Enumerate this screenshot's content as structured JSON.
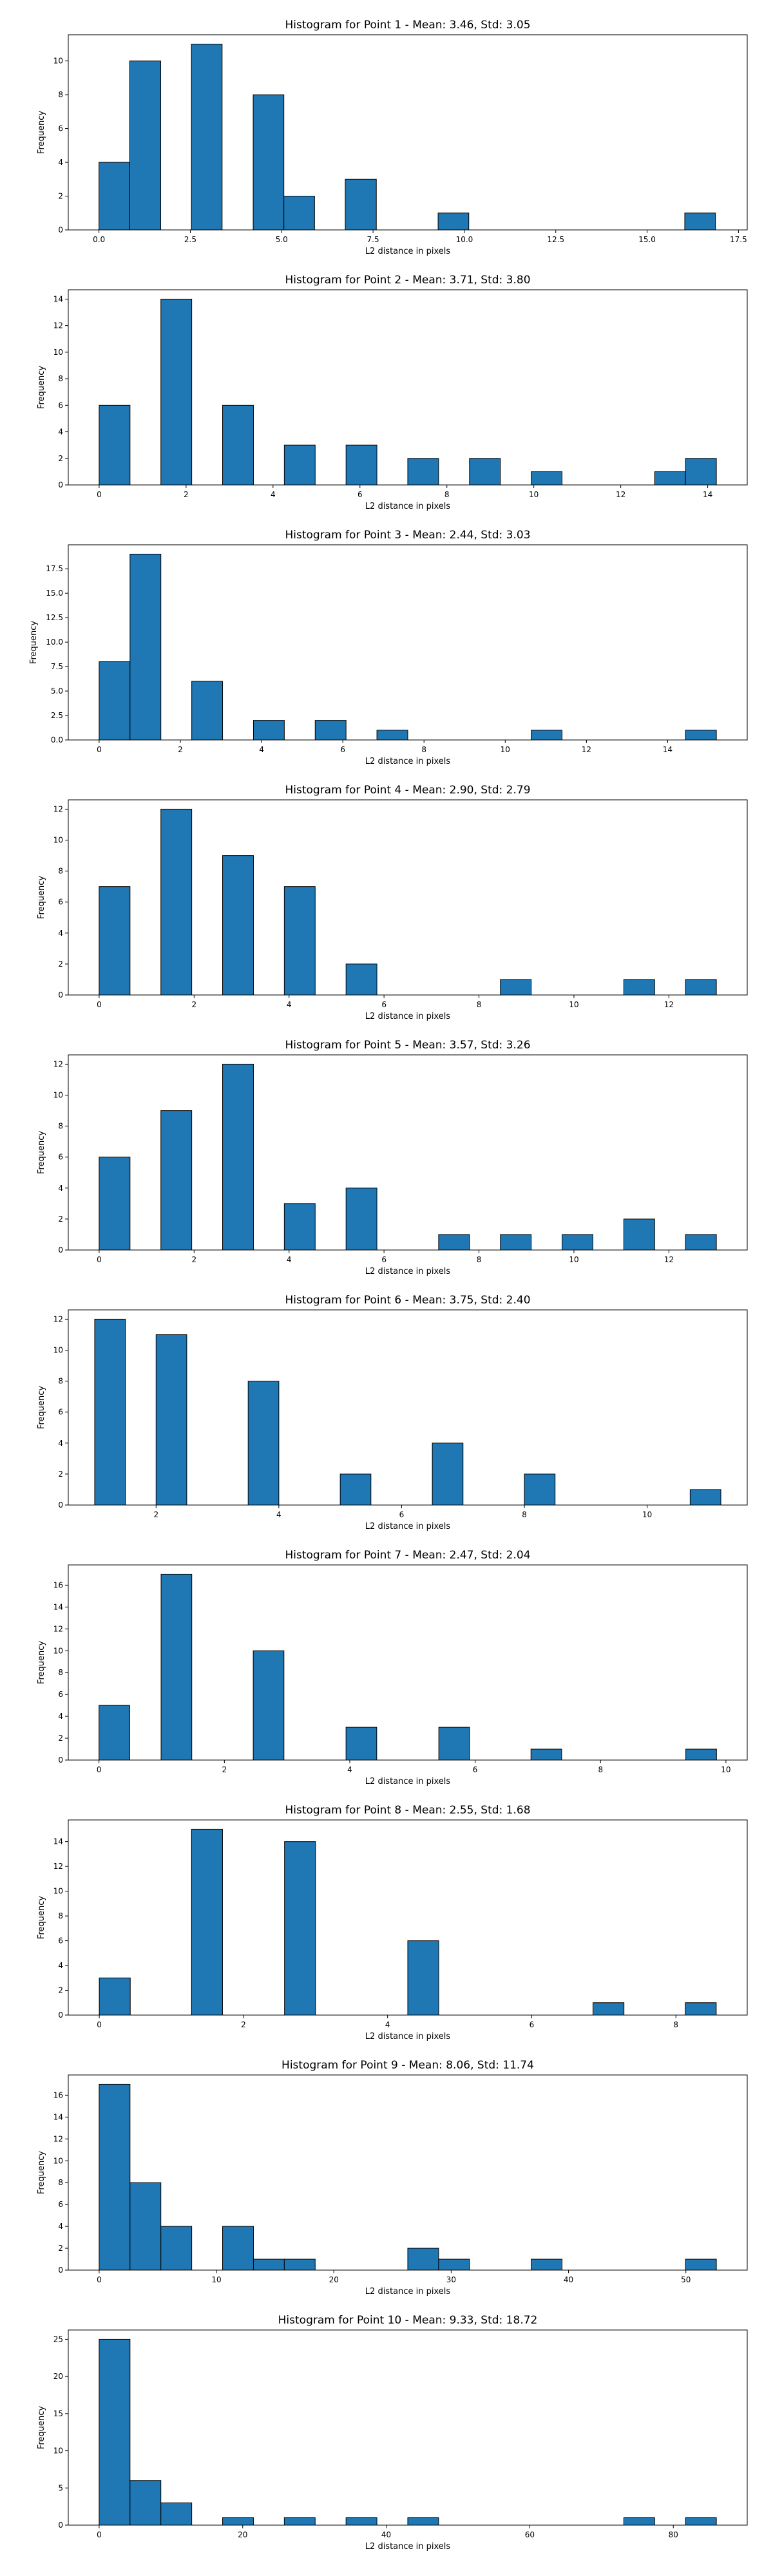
{
  "chart_data": [
    {
      "type": "bar",
      "title": "Histogram for Point 1 - Mean: 3.46, Std: 3.05",
      "xlabel": "L2 distance in pixels",
      "ylabel": "Frequency",
      "xlim": [
        -0.84,
        17.74
      ],
      "ylim": [
        0,
        11.55
      ],
      "xticks": [
        0,
        2.5,
        5,
        7.5,
        10,
        12.5,
        15,
        17.5
      ],
      "xtick_labels": [
        "0.0",
        "2.5",
        "5.0",
        "7.5",
        "10.0",
        "12.5",
        "15.0",
        "17.5"
      ],
      "yticks": [
        0,
        2,
        4,
        6,
        8,
        10
      ],
      "bins": [
        {
          "x0": 0.0,
          "x1": 0.84,
          "count": 4
        },
        {
          "x0": 0.84,
          "x1": 1.69,
          "count": 10
        },
        {
          "x0": 2.53,
          "x1": 3.37,
          "count": 11
        },
        {
          "x0": 4.22,
          "x1": 5.06,
          "count": 8
        },
        {
          "x0": 5.06,
          "x1": 5.9,
          "count": 2
        },
        {
          "x0": 6.74,
          "x1": 7.59,
          "count": 3
        },
        {
          "x0": 9.28,
          "x1": 10.12,
          "count": 1
        },
        {
          "x0": 16.03,
          "x1": 16.87,
          "count": 1
        }
      ]
    },
    {
      "type": "bar",
      "title": "Histogram for Point 2 - Mean: 3.71, Std: 3.80",
      "xlabel": "L2 distance in pixels",
      "ylabel": "Frequency",
      "xlim": [
        -0.71,
        14.91
      ],
      "ylim": [
        0,
        14.7
      ],
      "xticks": [
        0,
        2,
        4,
        6,
        8,
        10,
        12,
        14
      ],
      "xtick_labels": [
        "0",
        "2",
        "4",
        "6",
        "8",
        "10",
        "12",
        "14"
      ],
      "yticks": [
        0,
        2,
        4,
        6,
        8,
        10,
        12,
        14
      ],
      "bins": [
        {
          "x0": 0.0,
          "x1": 0.71,
          "count": 6
        },
        {
          "x0": 1.42,
          "x1": 2.13,
          "count": 14
        },
        {
          "x0": 2.84,
          "x1": 3.55,
          "count": 6
        },
        {
          "x0": 4.26,
          "x1": 4.97,
          "count": 3
        },
        {
          "x0": 5.68,
          "x1": 6.39,
          "count": 3
        },
        {
          "x0": 7.1,
          "x1": 7.81,
          "count": 2
        },
        {
          "x0": 8.52,
          "x1": 9.23,
          "count": 2
        },
        {
          "x0": 9.94,
          "x1": 10.65,
          "count": 1
        },
        {
          "x0": 12.78,
          "x1": 13.49,
          "count": 1
        },
        {
          "x0": 13.49,
          "x1": 14.2,
          "count": 2
        }
      ]
    },
    {
      "type": "bar",
      "title": "Histogram for Point 3 - Mean: 2.44, Std: 3.03",
      "xlabel": "L2 distance in pixels",
      "ylabel": "Frequency",
      "xlim": [
        -0.76,
        15.96
      ],
      "ylim": [
        0,
        19.95
      ],
      "xticks": [
        0,
        2,
        4,
        6,
        8,
        10,
        12,
        14
      ],
      "xtick_labels": [
        "0",
        "2",
        "4",
        "6",
        "8",
        "10",
        "12",
        "14"
      ],
      "yticks": [
        0,
        2.5,
        5,
        7.5,
        10,
        12.5,
        15,
        17.5
      ],
      "ytick_labels": [
        "0.0",
        "2.5",
        "5.0",
        "7.5",
        "10.0",
        "12.5",
        "15.0",
        "17.5"
      ],
      "bins": [
        {
          "x0": 0.0,
          "x1": 0.76,
          "count": 8
        },
        {
          "x0": 0.76,
          "x1": 1.52,
          "count": 19
        },
        {
          "x0": 2.28,
          "x1": 3.04,
          "count": 6
        },
        {
          "x0": 3.8,
          "x1": 4.56,
          "count": 2
        },
        {
          "x0": 5.32,
          "x1": 6.08,
          "count": 2
        },
        {
          "x0": 6.84,
          "x1": 7.6,
          "count": 1
        },
        {
          "x0": 10.64,
          "x1": 11.4,
          "count": 1
        },
        {
          "x0": 14.44,
          "x1": 15.2,
          "count": 1
        }
      ]
    },
    {
      "type": "bar",
      "title": "Histogram for Point 4 - Mean: 2.90, Std: 2.79",
      "xlabel": "L2 distance in pixels",
      "ylabel": "Frequency",
      "xlim": [
        -0.65,
        13.65
      ],
      "ylim": [
        0,
        12.6
      ],
      "xticks": [
        0,
        2,
        4,
        6,
        8,
        10,
        12
      ],
      "xtick_labels": [
        "0",
        "2",
        "4",
        "6",
        "8",
        "10",
        "12"
      ],
      "yticks": [
        0,
        2,
        4,
        6,
        8,
        10,
        12
      ],
      "bins": [
        {
          "x0": 0.0,
          "x1": 0.65,
          "count": 7
        },
        {
          "x0": 1.3,
          "x1": 1.95,
          "count": 12
        },
        {
          "x0": 2.6,
          "x1": 3.25,
          "count": 9
        },
        {
          "x0": 3.9,
          "x1": 4.55,
          "count": 7
        },
        {
          "x0": 5.2,
          "x1": 5.85,
          "count": 2
        },
        {
          "x0": 8.45,
          "x1": 9.1,
          "count": 1
        },
        {
          "x0": 11.05,
          "x1": 11.7,
          "count": 1
        },
        {
          "x0": 12.35,
          "x1": 13.0,
          "count": 1
        }
      ]
    },
    {
      "type": "bar",
      "title": "Histogram for Point 5 - Mean: 3.57, Std: 3.26",
      "xlabel": "L2 distance in pixels",
      "ylabel": "Frequency",
      "xlim": [
        -0.65,
        13.65
      ],
      "ylim": [
        0,
        12.6
      ],
      "xticks": [
        0,
        2,
        4,
        6,
        8,
        10,
        12
      ],
      "xtick_labels": [
        "0",
        "2",
        "4",
        "6",
        "8",
        "10",
        "12"
      ],
      "yticks": [
        0,
        2,
        4,
        6,
        8,
        10,
        12
      ],
      "bins": [
        {
          "x0": 0.0,
          "x1": 0.65,
          "count": 6
        },
        {
          "x0": 1.3,
          "x1": 1.95,
          "count": 9
        },
        {
          "x0": 2.6,
          "x1": 3.25,
          "count": 12
        },
        {
          "x0": 3.9,
          "x1": 4.55,
          "count": 3
        },
        {
          "x0": 5.2,
          "x1": 5.85,
          "count": 4
        },
        {
          "x0": 7.15,
          "x1": 7.8,
          "count": 1
        },
        {
          "x0": 8.45,
          "x1": 9.1,
          "count": 1
        },
        {
          "x0": 9.75,
          "x1": 10.4,
          "count": 1
        },
        {
          "x0": 11.05,
          "x1": 11.7,
          "count": 2
        },
        {
          "x0": 12.35,
          "x1": 13.0,
          "count": 1
        }
      ]
    },
    {
      "type": "bar",
      "title": "Histogram for Point 6 - Mean: 3.75, Std: 2.40",
      "xlabel": "L2 distance in pixels",
      "ylabel": "Frequency",
      "xlim": [
        0.57,
        11.63
      ],
      "ylim": [
        0,
        12.6
      ],
      "xticks": [
        2,
        4,
        6,
        8,
        10
      ],
      "xtick_labels": [
        "2",
        "4",
        "6",
        "8",
        "10"
      ],
      "yticks": [
        0,
        2,
        4,
        6,
        8,
        10,
        12
      ],
      "bins": [
        {
          "x0": 1.0,
          "x1": 1.5,
          "count": 12
        },
        {
          "x0": 2.0,
          "x1": 2.5,
          "count": 11
        },
        {
          "x0": 3.5,
          "x1": 4.0,
          "count": 8
        },
        {
          "x0": 5.0,
          "x1": 5.5,
          "count": 2
        },
        {
          "x0": 6.5,
          "x1": 7.0,
          "count": 4
        },
        {
          "x0": 8.0,
          "x1": 8.5,
          "count": 2
        },
        {
          "x0": 10.7,
          "x1": 11.2,
          "count": 1
        }
      ]
    },
    {
      "type": "bar",
      "title": "Histogram for Point 7 - Mean: 2.47, Std: 2.04",
      "xlabel": "L2 distance in pixels",
      "ylabel": "Frequency",
      "xlim": [
        -0.49,
        10.34
      ],
      "ylim": [
        0,
        17.85
      ],
      "xticks": [
        0,
        2,
        4,
        6,
        8,
        10
      ],
      "xtick_labels": [
        "0",
        "2",
        "4",
        "6",
        "8",
        "10"
      ],
      "yticks": [
        0,
        2,
        4,
        6,
        8,
        10,
        12,
        14,
        16
      ],
      "bins": [
        {
          "x0": 0.0,
          "x1": 0.49,
          "count": 5
        },
        {
          "x0": 0.99,
          "x1": 1.48,
          "count": 17
        },
        {
          "x0": 2.46,
          "x1": 2.95,
          "count": 10
        },
        {
          "x0": 3.94,
          "x1": 4.43,
          "count": 3
        },
        {
          "x0": 5.42,
          "x1": 5.91,
          "count": 3
        },
        {
          "x0": 6.89,
          "x1": 7.38,
          "count": 1
        },
        {
          "x0": 9.36,
          "x1": 9.85,
          "count": 1
        }
      ]
    },
    {
      "type": "bar",
      "title": "Histogram for Point 8 - Mean: 2.55, Std: 1.68",
      "xlabel": "L2 distance in pixels",
      "ylabel": "Frequency",
      "xlim": [
        -0.43,
        8.99
      ],
      "ylim": [
        0,
        15.75
      ],
      "xticks": [
        0,
        2,
        4,
        6,
        8
      ],
      "xtick_labels": [
        "0",
        "2",
        "4",
        "6",
        "8"
      ],
      "yticks": [
        0,
        2,
        4,
        6,
        8,
        10,
        12,
        14
      ],
      "bins": [
        {
          "x0": 0.0,
          "x1": 0.43,
          "count": 3
        },
        {
          "x0": 1.28,
          "x1": 1.71,
          "count": 15
        },
        {
          "x0": 2.57,
          "x1": 3.0,
          "count": 14
        },
        {
          "x0": 4.28,
          "x1": 4.71,
          "count": 6
        },
        {
          "x0": 6.85,
          "x1": 7.28,
          "count": 1
        },
        {
          "x0": 8.13,
          "x1": 8.56,
          "count": 1
        }
      ]
    },
    {
      "type": "bar",
      "title": "Histogram for Point 9 - Mean: 8.06, Std: 11.74",
      "xlabel": "L2 distance in pixels",
      "ylabel": "Frequency",
      "xlim": [
        -2.63,
        55.23
      ],
      "ylim": [
        0,
        17.85
      ],
      "xticks": [
        0,
        10,
        20,
        30,
        40,
        50
      ],
      "xtick_labels": [
        "0",
        "10",
        "20",
        "30",
        "40",
        "50"
      ],
      "yticks": [
        0,
        2,
        4,
        6,
        8,
        10,
        12,
        14,
        16
      ],
      "bins": [
        {
          "x0": 0.0,
          "x1": 2.63,
          "count": 17
        },
        {
          "x0": 2.63,
          "x1": 5.26,
          "count": 8
        },
        {
          "x0": 5.26,
          "x1": 7.89,
          "count": 4
        },
        {
          "x0": 10.52,
          "x1": 13.15,
          "count": 4
        },
        {
          "x0": 13.15,
          "x1": 15.78,
          "count": 1
        },
        {
          "x0": 15.78,
          "x1": 18.41,
          "count": 1
        },
        {
          "x0": 26.3,
          "x1": 28.93,
          "count": 2
        },
        {
          "x0": 28.93,
          "x1": 31.56,
          "count": 1
        },
        {
          "x0": 36.82,
          "x1": 39.45,
          "count": 1
        },
        {
          "x0": 49.97,
          "x1": 52.6,
          "count": 1
        }
      ]
    },
    {
      "type": "bar",
      "title": "Histogram for Point 10 - Mean: 9.33, Std: 18.72",
      "xlabel": "L2 distance in pixels",
      "ylabel": "Frequency",
      "xlim": [
        -4.3,
        90.3
      ],
      "ylim": [
        0,
        26.25
      ],
      "xticks": [
        0,
        20,
        40,
        60,
        80
      ],
      "xtick_labels": [
        "0",
        "20",
        "40",
        "60",
        "80"
      ],
      "yticks": [
        0,
        5,
        10,
        15,
        20,
        25
      ],
      "bins": [
        {
          "x0": 0.0,
          "x1": 4.3,
          "count": 25
        },
        {
          "x0": 4.3,
          "x1": 8.6,
          "count": 6
        },
        {
          "x0": 8.6,
          "x1": 12.9,
          "count": 3
        },
        {
          "x0": 17.2,
          "x1": 21.5,
          "count": 1
        },
        {
          "x0": 25.8,
          "x1": 30.1,
          "count": 1
        },
        {
          "x0": 34.4,
          "x1": 38.7,
          "count": 1
        },
        {
          "x0": 43.0,
          "x1": 47.3,
          "count": 1
        },
        {
          "x0": 73.1,
          "x1": 77.4,
          "count": 1
        },
        {
          "x0": 81.7,
          "x1": 86.0,
          "count": 1
        }
      ]
    }
  ]
}
